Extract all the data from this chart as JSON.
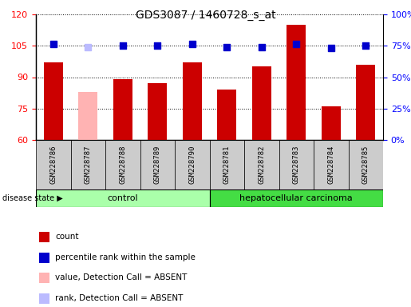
{
  "title": "GDS3087 / 1460728_s_at",
  "samples": [
    "GSM228786",
    "GSM228787",
    "GSM228788",
    "GSM228789",
    "GSM228790",
    "GSM228781",
    "GSM228782",
    "GSM228783",
    "GSM228784",
    "GSM228785"
  ],
  "bar_values": [
    97,
    83,
    89,
    87,
    97,
    84,
    95,
    115,
    76,
    96
  ],
  "bar_colors": [
    "#cc0000",
    "#ffb3b3",
    "#cc0000",
    "#cc0000",
    "#cc0000",
    "#cc0000",
    "#cc0000",
    "#cc0000",
    "#cc0000",
    "#cc0000"
  ],
  "dot_values": [
    106,
    104.5,
    105,
    105,
    106,
    104.5,
    104.5,
    106,
    104,
    105
  ],
  "dot_colors": [
    "#0000cc",
    "#bbbbff",
    "#0000cc",
    "#0000cc",
    "#0000cc",
    "#0000cc",
    "#0000cc",
    "#0000cc",
    "#0000cc",
    "#0000cc"
  ],
  "ylim_left": [
    60,
    120
  ],
  "ylim_right": [
    0,
    100
  ],
  "yticks_left": [
    60,
    75,
    90,
    105,
    120
  ],
  "yticks_right": [
    0,
    25,
    50,
    75,
    100
  ],
  "ytick_labels_right": [
    "0%",
    "25%",
    "50%",
    "75%",
    "100%"
  ],
  "groups": [
    {
      "label": "control",
      "start": 0,
      "end": 5,
      "color": "#aaffaa"
    },
    {
      "label": "hepatocellular carcinoma",
      "start": 5,
      "end": 10,
      "color": "#44dd44"
    }
  ],
  "disease_state_label": "disease state",
  "legend_items": [
    {
      "color": "#cc0000",
      "label": "count"
    },
    {
      "color": "#0000cc",
      "label": "percentile rank within the sample"
    },
    {
      "color": "#ffb3b3",
      "label": "value, Detection Call = ABSENT"
    },
    {
      "color": "#bbbbff",
      "label": "rank, Detection Call = ABSENT"
    }
  ],
  "bar_width": 0.55,
  "dot_size": 36,
  "bg_xticklabel": "#cccccc",
  "bg_plot": "#ffffff"
}
